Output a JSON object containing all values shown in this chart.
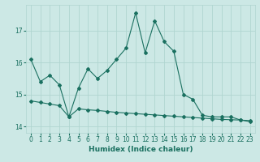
{
  "xlabel": "Humidex (Indice chaleur)",
  "bg_color": "#cce8e5",
  "grid_color": "#b0d5d0",
  "line_color": "#1a7060",
  "xlim": [
    -0.5,
    23.5
  ],
  "ylim": [
    13.8,
    17.8
  ],
  "yticks": [
    14,
    15,
    16,
    17
  ],
  "xticks": [
    0,
    1,
    2,
    3,
    4,
    5,
    6,
    7,
    8,
    9,
    10,
    11,
    12,
    13,
    14,
    15,
    16,
    17,
    18,
    19,
    20,
    21,
    22,
    23
  ],
  "line1_x": [
    0,
    1,
    2,
    3,
    4,
    5,
    6,
    7,
    8,
    9,
    10,
    11,
    12,
    13,
    14,
    15,
    16,
    17,
    18,
    19,
    20,
    21,
    22,
    23
  ],
  "line1_y": [
    16.1,
    15.4,
    15.6,
    15.3,
    14.3,
    15.2,
    15.8,
    15.5,
    15.75,
    16.1,
    16.45,
    17.55,
    16.3,
    17.3,
    16.65,
    16.35,
    15.0,
    14.85,
    14.35,
    14.3,
    14.3,
    14.3,
    14.2,
    14.15
  ],
  "line2_x": [
    0,
    1,
    2,
    3,
    4,
    5,
    6,
    7,
    8,
    9,
    10,
    11,
    12,
    13,
    14,
    15,
    16,
    17,
    18,
    19,
    20,
    21,
    22,
    23
  ],
  "line2_y": [
    14.8,
    14.75,
    14.7,
    14.65,
    14.3,
    14.55,
    14.52,
    14.5,
    14.47,
    14.44,
    14.42,
    14.4,
    14.38,
    14.36,
    14.34,
    14.32,
    14.3,
    14.28,
    14.26,
    14.24,
    14.22,
    14.21,
    14.2,
    14.18
  ],
  "markersize": 2.0,
  "linewidth": 0.8,
  "tick_fontsize": 5.5,
  "xlabel_fontsize": 6.5
}
